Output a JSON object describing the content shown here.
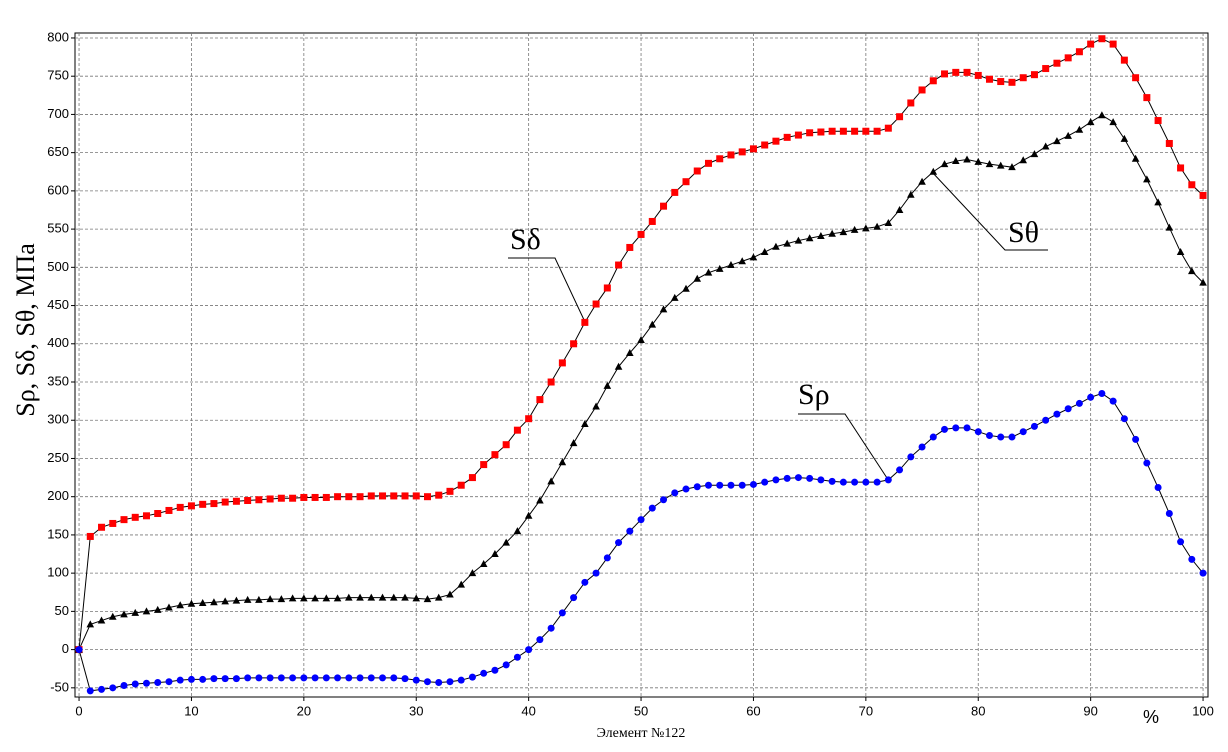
{
  "chart_data": {
    "type": "line",
    "ylabel": "Sρ, Sδ, Sθ, МПа",
    "xlabel": "Элемент №122",
    "xunit": "%",
    "annotations": [
      "Sδ",
      "Sθ",
      "Sρ"
    ],
    "line_color": "#000000",
    "grid": true,
    "xlim": [
      -0.36,
      100.44
    ],
    "ylim": [
      -62,
      806.5
    ],
    "xticks": [
      0,
      10,
      20,
      30,
      40,
      50,
      60,
      70,
      80,
      90,
      100
    ],
    "yticks": [
      -50,
      0,
      50,
      100,
      150,
      200,
      250,
      300,
      350,
      400,
      450,
      500,
      550,
      600,
      650,
      700,
      750,
      800
    ],
    "x": [
      0,
      1,
      2,
      3,
      4,
      5,
      6,
      7,
      8,
      9,
      10,
      11,
      12,
      13,
      14,
      15,
      16,
      17,
      18,
      19,
      20,
      21,
      22,
      23,
      24,
      25,
      26,
      27,
      28,
      29,
      30,
      31,
      32,
      33,
      34,
      35,
      36,
      37,
      38,
      39,
      40,
      41,
      42,
      43,
      44,
      45,
      46,
      47,
      48,
      49,
      50,
      51,
      52,
      53,
      54,
      55,
      56,
      57,
      58,
      59,
      60,
      61,
      62,
      63,
      64,
      65,
      66,
      67,
      68,
      69,
      70,
      71,
      72,
      73,
      74,
      75,
      76,
      77,
      78,
      79,
      80,
      81,
      82,
      83,
      84,
      85,
      86,
      87,
      88,
      89,
      90,
      91,
      92,
      93,
      94,
      95,
      96,
      97,
      98,
      99,
      100
    ],
    "series": [
      {
        "name": "Sδ",
        "color": "#ff0000",
        "marker": "square",
        "values": [
          0,
          148,
          160,
          165,
          170,
          173,
          175,
          178,
          182,
          186,
          188,
          190,
          191,
          193,
          194,
          195,
          196,
          197,
          198,
          198,
          199,
          199,
          199,
          200,
          200,
          200,
          201,
          201,
          201,
          201,
          201,
          200,
          202,
          207,
          215,
          225,
          242,
          255,
          268,
          287,
          302,
          327,
          350,
          375,
          400,
          428,
          452,
          473,
          503,
          526,
          543,
          560,
          580,
          598,
          612,
          626,
          636,
          642,
          647,
          651,
          655,
          660,
          665,
          670,
          673,
          676,
          677,
          678,
          678,
          678,
          678,
          678,
          682,
          697,
          715,
          732,
          744,
          753,
          755,
          755,
          751,
          746,
          743,
          742,
          748,
          752,
          760,
          767,
          774,
          782,
          792,
          799,
          792,
          771,
          748,
          722,
          692,
          662,
          630,
          608,
          594
        ]
      },
      {
        "name": "Sθ",
        "color": "#000000",
        "marker": "triangle",
        "values": [
          0,
          33,
          38,
          43,
          46,
          48,
          50,
          52,
          55,
          58,
          60,
          61,
          62,
          63,
          64,
          65,
          65,
          66,
          66,
          67,
          67,
          67,
          67,
          67,
          68,
          68,
          68,
          68,
          68,
          68,
          67,
          66,
          68,
          72,
          85,
          100,
          112,
          125,
          140,
          155,
          175,
          195,
          220,
          245,
          270,
          295,
          318,
          345,
          370,
          388,
          405,
          425,
          445,
          460,
          472,
          485,
          493,
          498,
          503,
          508,
          513,
          520,
          527,
          531,
          535,
          538,
          541,
          544,
          546,
          549,
          551,
          553,
          558,
          575,
          595,
          612,
          625,
          635,
          639,
          641,
          638,
          635,
          633,
          631,
          640,
          648,
          658,
          665,
          672,
          680,
          690,
          699,
          690,
          668,
          642,
          615,
          585,
          552,
          520,
          495,
          480
        ]
      },
      {
        "name": "Sρ",
        "color": "#0000ff",
        "marker": "circle",
        "values": [
          0,
          -54,
          -52,
          -50,
          -47,
          -45,
          -44,
          -43,
          -42,
          -40,
          -39,
          -39,
          -38,
          -38,
          -38,
          -37,
          -37,
          -37,
          -37,
          -37,
          -37,
          -37,
          -37,
          -37,
          -37,
          -37,
          -37,
          -37,
          -37,
          -38,
          -40,
          -42,
          -43,
          -42,
          -40,
          -36,
          -31,
          -27,
          -20,
          -10,
          0,
          13,
          28,
          48,
          68,
          88,
          100,
          120,
          140,
          155,
          170,
          185,
          196,
          205,
          210,
          213,
          215,
          215,
          215,
          215,
          216,
          219,
          222,
          224,
          225,
          224,
          222,
          220,
          219,
          219,
          219,
          219,
          222,
          235,
          252,
          265,
          278,
          288,
          290,
          290,
          285,
          280,
          278,
          278,
          285,
          292,
          300,
          308,
          315,
          322,
          330,
          335,
          325,
          302,
          275,
          244,
          212,
          178,
          141,
          118,
          100
        ]
      }
    ]
  }
}
